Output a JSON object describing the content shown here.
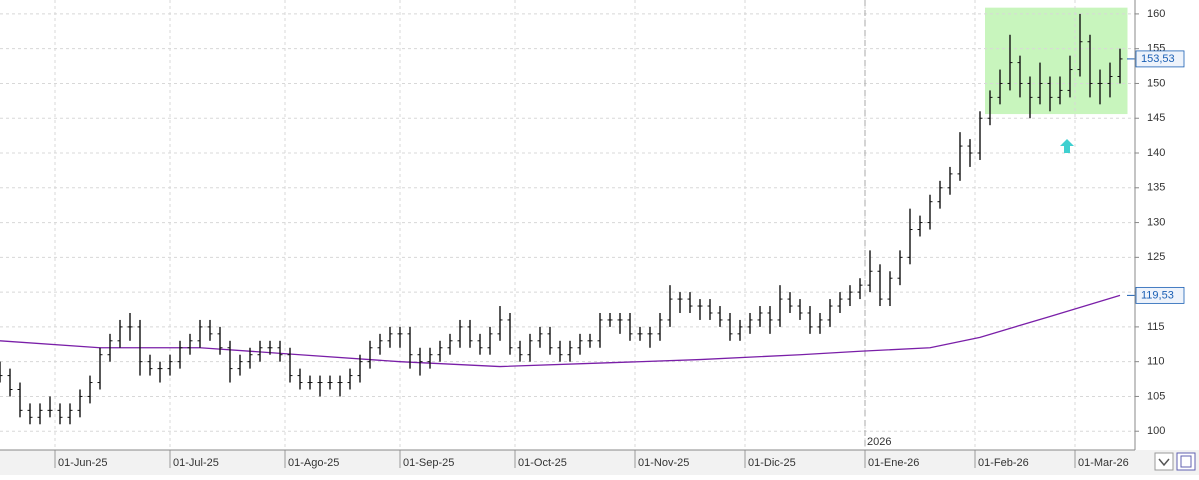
{
  "chart_data": {
    "type": "ohlc",
    "ylim": [
      97.3,
      162
    ],
    "yticks": [
      100,
      105,
      110,
      115,
      120,
      125,
      130,
      135,
      140,
      145,
      150,
      155,
      160
    ],
    "xlim": [
      0,
      227
    ],
    "xticks": [
      {
        "value": 11,
        "label": "01-Jun-25"
      },
      {
        "value": 34,
        "label": "01-Jul-25"
      },
      {
        "value": 57,
        "label": "01-Ago-25"
      },
      {
        "value": 80,
        "label": "01-Sep-25"
      },
      {
        "value": 103,
        "label": "01-Oct-25"
      },
      {
        "value": 127,
        "label": "01-Nov-25"
      },
      {
        "value": 149,
        "label": "01-Dic-25"
      },
      {
        "value": 173,
        "label": "01-Ene-26"
      },
      {
        "value": 195,
        "label": "01-Feb-26"
      },
      {
        "value": 215,
        "label": "01-Mar-26"
      }
    ],
    "grid": true,
    "series": [
      {
        "color": "#111111",
        "x": [
          0,
          2,
          4,
          6,
          8,
          10,
          12,
          14,
          16,
          18,
          20,
          22,
          24,
          26,
          28,
          30,
          32,
          34,
          36,
          38,
          40,
          42,
          44,
          46,
          48,
          50,
          52,
          54,
          56,
          58,
          60,
          62,
          64,
          66,
          68,
          70,
          72,
          74,
          76,
          78,
          80,
          82,
          84,
          86,
          88,
          90,
          92,
          94,
          96,
          98,
          100,
          102,
          104,
          106,
          108,
          110,
          112,
          114,
          116,
          118,
          120,
          122,
          124,
          126,
          128,
          130,
          132,
          134,
          136,
          138,
          140,
          142,
          144,
          146,
          148,
          150,
          152,
          154,
          156,
          158,
          160,
          162,
          164,
          166,
          168,
          170,
          172,
          174,
          176,
          178,
          180,
          182,
          184,
          186,
          188,
          190,
          192,
          194,
          196,
          198,
          200,
          202,
          204,
          206,
          208,
          210,
          212,
          214,
          216,
          218,
          220,
          222,
          224
        ],
        "open": [
          109,
          108,
          106,
          103,
          102,
          103,
          103,
          102,
          103,
          105,
          107,
          111,
          113,
          115,
          115,
          110,
          109,
          109,
          110,
          112,
          113,
          115,
          114,
          112,
          109,
          110,
          111,
          112,
          112,
          111,
          108,
          107,
          107,
          107,
          107,
          107,
          108,
          110,
          112,
          113,
          114,
          114,
          111,
          110,
          111,
          112,
          113,
          115,
          113,
          112,
          114,
          116,
          112,
          111,
          113,
          114,
          112,
          111,
          112,
          113,
          113,
          116,
          116,
          116,
          114,
          114,
          114,
          116,
          119,
          119,
          118,
          118,
          117,
          116,
          114,
          115,
          116,
          117,
          116,
          119,
          118,
          117,
          115,
          116,
          118,
          119,
          120,
          121,
          123,
          119,
          122,
          125,
          129,
          130,
          133,
          135,
          137,
          141,
          140,
          145,
          148,
          150,
          153,
          150,
          148,
          150,
          148,
          149,
          152,
          156,
          150,
          150,
          151
        ],
        "high": [
          110,
          109,
          107,
          104,
          104,
          105,
          104,
          104,
          106,
          108,
          112,
          114,
          116,
          117,
          116,
          111,
          110,
          111,
          113,
          114,
          116,
          116,
          115,
          113,
          111,
          112,
          113,
          113,
          113,
          112,
          109,
          108,
          108,
          108,
          108,
          109,
          111,
          113,
          114,
          115,
          115,
          115,
          112,
          112,
          113,
          114,
          116,
          116,
          114,
          115,
          118,
          117,
          113,
          114,
          115,
          115,
          113,
          113,
          114,
          114,
          117,
          117,
          117,
          117,
          115,
          115,
          117,
          121,
          120,
          120,
          119,
          119,
          118,
          117,
          116,
          117,
          118,
          118,
          121,
          120,
          119,
          118,
          117,
          119,
          120,
          121,
          122,
          126,
          124,
          123,
          126,
          132,
          131,
          134,
          136,
          138,
          143,
          142,
          146,
          149,
          152,
          157,
          154,
          151,
          153,
          151,
          151,
          154,
          160,
          157,
          152,
          153,
          155
        ],
        "low": [
          107,
          105,
          102,
          101,
          101,
          102,
          101,
          101,
          102,
          104,
          106,
          110,
          112,
          113,
          108,
          108,
          107,
          108,
          109,
          111,
          112,
          113,
          111,
          107,
          108,
          109,
          110,
          111,
          110,
          107,
          106,
          106,
          105,
          106,
          105,
          106,
          107,
          109,
          111,
          112,
          112,
          109,
          108,
          109,
          110,
          111,
          112,
          112,
          111,
          111,
          113,
          111,
          110,
          110,
          112,
          111,
          110,
          110,
          111,
          112,
          112,
          115,
          114,
          113,
          113,
          112,
          113,
          115,
          117,
          117,
          116,
          116,
          115,
          113,
          113,
          114,
          115,
          114,
          115,
          117,
          116,
          114,
          114,
          115,
          117,
          118,
          119,
          120,
          118,
          118,
          121,
          124,
          128,
          129,
          132,
          134,
          136,
          138,
          139,
          144,
          147,
          149,
          148,
          145,
          147,
          146,
          147,
          148,
          151,
          148,
          147,
          148,
          150
        ],
        "close": [
          108,
          106,
          103,
          102,
          103,
          103,
          102,
          103,
          105,
          107,
          111,
          113,
          115,
          115,
          110,
          109,
          109,
          110,
          112,
          113,
          115,
          114,
          112,
          109,
          110,
          111,
          112,
          112,
          111,
          108,
          107,
          107,
          107,
          107,
          107,
          108,
          110,
          112,
          113,
          114,
          114,
          111,
          110,
          111,
          112,
          113,
          115,
          113,
          112,
          114,
          116,
          112,
          111,
          113,
          114,
          112,
          111,
          112,
          113,
          113,
          116,
          116,
          116,
          114,
          114,
          114,
          116,
          119,
          119,
          118,
          118,
          117,
          116,
          114,
          115,
          116,
          117,
          116,
          119,
          118,
          117,
          115,
          116,
          118,
          119,
          120,
          121,
          123,
          119,
          122,
          125,
          129,
          130,
          133,
          135,
          137,
          141,
          140,
          145,
          148,
          150,
          153,
          150,
          148,
          150,
          148,
          149,
          152,
          156,
          150,
          150,
          151,
          153.53
        ]
      }
    ],
    "lines": [
      {
        "color": "#7a1fa8",
        "x": [
          0,
          20,
          40,
          60,
          80,
          100,
          120,
          140,
          160,
          172,
          186,
          196,
          210,
          224
        ],
        "values": [
          113,
          112,
          112,
          111,
          110,
          109.3,
          109.8,
          110.3,
          111,
          111.5,
          112,
          113.5,
          116.5,
          119.53
        ]
      }
    ],
    "annotations": [
      {
        "value": 153.53,
        "label": "153,53"
      },
      {
        "value": 119.53,
        "label": "119,53"
      }
    ],
    "year_marker": {
      "x": 173,
      "label": "2026"
    },
    "highlight_box": {
      "x": [
        197,
        225.5
      ],
      "y": [
        145.6,
        160.9
      ],
      "color": "#c8f5bd"
    }
  }
}
